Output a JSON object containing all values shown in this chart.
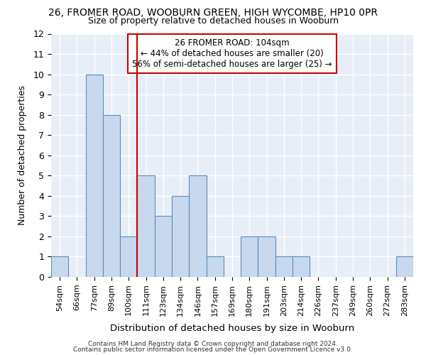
{
  "title1": "26, FROMER ROAD, WOOBURN GREEN, HIGH WYCOMBE, HP10 0PR",
  "title2": "Size of property relative to detached houses in Wooburn",
  "xlabel": "Distribution of detached houses by size in Wooburn",
  "ylabel": "Number of detached properties",
  "categories": [
    "54sqm",
    "66sqm",
    "77sqm",
    "89sqm",
    "100sqm",
    "111sqm",
    "123sqm",
    "134sqm",
    "146sqm",
    "157sqm",
    "169sqm",
    "180sqm",
    "191sqm",
    "203sqm",
    "214sqm",
    "226sqm",
    "237sqm",
    "249sqm",
    "260sqm",
    "272sqm",
    "283sqm"
  ],
  "values": [
    1,
    0,
    10,
    8,
    2,
    5,
    3,
    4,
    5,
    1,
    0,
    2,
    2,
    1,
    1,
    0,
    0,
    0,
    0,
    0,
    1
  ],
  "bar_color": "#c8d8ee",
  "bar_edge_color": "#5b8db8",
  "vline_x_index": 4,
  "vline_color": "#cc0000",
  "annotation_title": "26 FROMER ROAD: 104sqm",
  "annotation_line1": "← 44% of detached houses are smaller (20)",
  "annotation_line2": "56% of semi-detached houses are larger (25) →",
  "annotation_box_color": "#ffffff",
  "annotation_box_edge": "#cc0000",
  "ylim": [
    0,
    12
  ],
  "yticks": [
    0,
    1,
    2,
    3,
    4,
    5,
    6,
    7,
    8,
    9,
    10,
    11,
    12
  ],
  "footnote1": "Contains HM Land Registry data © Crown copyright and database right 2024.",
  "footnote2": "Contains public sector information licensed under the Open Government Licence v3.0.",
  "plot_bg_color": "#e8eef8",
  "fig_bg_color": "#ffffff",
  "grid_color": "#ffffff",
  "title1_fontsize": 10,
  "title2_fontsize": 9
}
